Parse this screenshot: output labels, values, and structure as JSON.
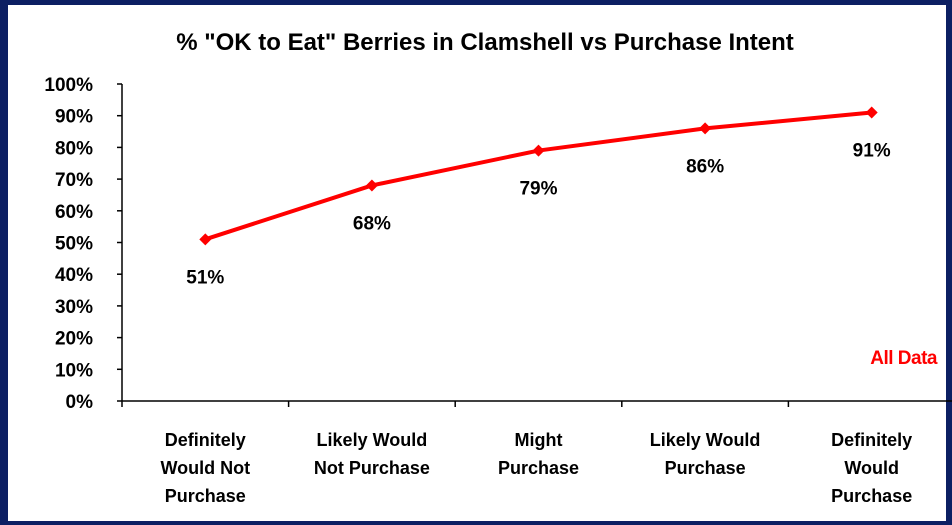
{
  "chart_data": {
    "type": "line",
    "title": "% \"OK to Eat\" Berries in Clamshell vs Purchase Intent",
    "categories": [
      [
        "Definitely",
        "Would Not",
        "Purchase"
      ],
      [
        "Likely Would",
        "Not Purchase"
      ],
      [
        "Might",
        "Purchase"
      ],
      [
        "Likely Would",
        "Purchase"
      ],
      [
        "Definitely",
        "Would",
        "Purchase"
      ]
    ],
    "values": [
      51,
      68,
      79,
      86,
      91
    ],
    "data_labels": [
      "51%",
      "68%",
      "79%",
      "86%",
      "91%"
    ],
    "ylim": [
      0,
      100
    ],
    "yticks": [
      "0%",
      "10%",
      "20%",
      "30%",
      "40%",
      "50%",
      "60%",
      "70%",
      "80%",
      "90%",
      "100%"
    ],
    "annotation": "All Data",
    "series_color": "#ff0000",
    "annotation_color": "#ff0000",
    "frame_color": "#0c1f63",
    "grid": false
  }
}
